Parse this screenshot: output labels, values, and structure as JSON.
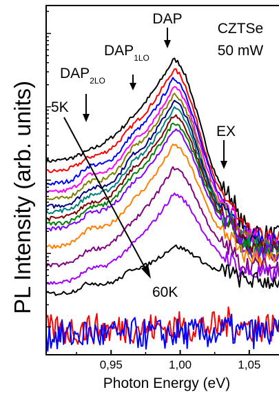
{
  "chart_data": {
    "type": "line",
    "xlabel": "Photon Energy (eV)",
    "ylabel": "PL Intensity (arb. units)",
    "xlim": [
      0.903,
      1.075
    ],
    "x_ticks": [
      "0,95",
      "1,00",
      "1,05"
    ],
    "x_tick_values": [
      0.95,
      1.0,
      1.05
    ],
    "ylim": [
      0,
      1
    ],
    "y_scale": "log",
    "grid": false,
    "legend": "none",
    "annotations": {
      "sample": "CZTSe",
      "power": "50 mW",
      "dap": "DAP",
      "dap1_main": "DAP",
      "dap1_sub": "1LO",
      "dap2_main": "DAP",
      "dap2_sub": "2LO",
      "ex": "EX",
      "t_low": "5K",
      "t_high": "60K"
    },
    "peaks_eV": {
      "DAP_2LO": 0.934,
      "DAP_1LO": 0.965,
      "DAP": 0.995,
      "EX": 1.035
    },
    "temperature_range": [
      "5K",
      "60K"
    ],
    "series": [
      {
        "color": "#000000",
        "peak": 0.845,
        "base": 0.555,
        "shoulder2": 0.585,
        "shoulder1": 0.68,
        "ex": 0.405,
        "tail": 0.34
      },
      {
        "color": "#ff0000",
        "peak": 0.815,
        "base": 0.525,
        "shoulder2": 0.565,
        "shoulder1": 0.655,
        "ex": 0.385,
        "tail": 0.33
      },
      {
        "color": "#0000ff",
        "peak": 0.79,
        "base": 0.49,
        "shoulder2": 0.54,
        "shoulder1": 0.63,
        "ex": 0.375,
        "tail": 0.325
      },
      {
        "color": "#ff00ff",
        "peak": 0.765,
        "base": 0.465,
        "shoulder2": 0.515,
        "shoulder1": 0.61,
        "ex": 0.365,
        "tail": 0.32
      },
      {
        "color": "#808000",
        "peak": 0.745,
        "base": 0.445,
        "shoulder2": 0.495,
        "shoulder1": 0.59,
        "ex": 0.355,
        "tail": 0.31
      },
      {
        "color": "#000080",
        "peak": 0.725,
        "base": 0.425,
        "shoulder2": 0.475,
        "shoulder1": 0.57,
        "ex": 0.35,
        "tail": 0.305
      },
      {
        "color": "#008080",
        "peak": 0.705,
        "base": 0.41,
        "shoulder2": 0.455,
        "shoulder1": 0.55,
        "ex": 0.345,
        "tail": 0.3
      },
      {
        "color": "#800000",
        "peak": 0.685,
        "base": 0.39,
        "shoulder2": 0.435,
        "shoulder1": 0.53,
        "ex": 0.34,
        "tail": 0.295
      },
      {
        "color": "#008000",
        "peak": 0.665,
        "base": 0.375,
        "shoulder2": 0.42,
        "shoulder1": 0.51,
        "ex": 0.335,
        "tail": 0.29
      },
      {
        "color": "#8000ff",
        "peak": 0.645,
        "base": 0.36,
        "shoulder2": 0.405,
        "shoulder1": 0.49,
        "ex": 0.33,
        "tail": 0.285
      },
      {
        "color": "#ff8000",
        "peak": 0.6,
        "base": 0.31,
        "shoulder2": 0.36,
        "shoulder1": 0.44,
        "ex": 0.3,
        "tail": 0.27
      },
      {
        "color": "#800080",
        "peak": 0.535,
        "base": 0.255,
        "shoulder2": 0.3,
        "shoulder1": 0.38,
        "ex": 0.27,
        "tail": 0.25
      },
      {
        "color": "#a000ff",
        "peak": 0.46,
        "base": 0.205,
        "shoulder2": 0.245,
        "shoulder1": 0.315,
        "ex": 0.245,
        "tail": 0.23
      },
      {
        "color": "#000000",
        "peak": 0.31,
        "base": 0.175,
        "shoulder2": 0.205,
        "shoulder1": 0.245,
        "ex": 0.22,
        "tail": 0.21
      },
      {
        "color": "#ff0000",
        "peak": 0.08,
        "base": 0.07,
        "shoulder2": 0.075,
        "shoulder1": 0.078,
        "ex": 0.08,
        "tail": 0.08
      },
      {
        "color": "#0000ff",
        "peak": 0.06,
        "base": 0.055,
        "shoulder2": 0.06,
        "shoulder1": 0.062,
        "ex": 0.062,
        "tail": 0.062
      }
    ]
  }
}
